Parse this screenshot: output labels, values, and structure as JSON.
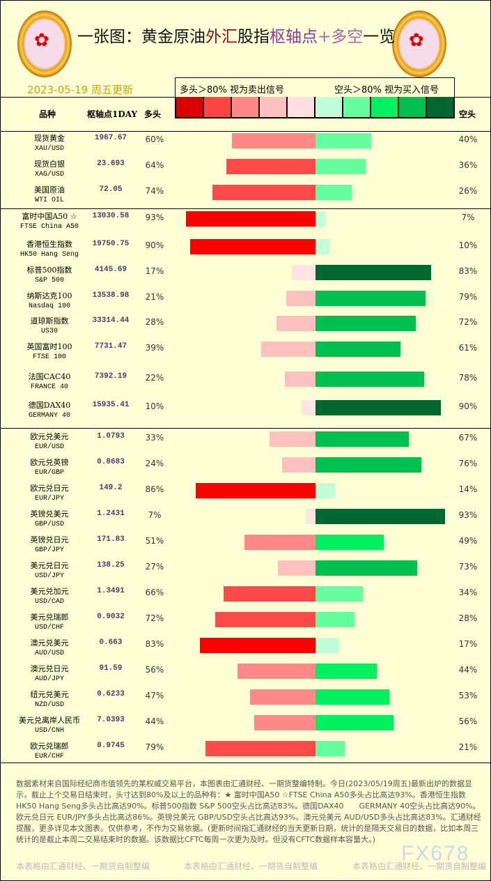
{
  "header": {
    "title_parts": [
      "一张图：黄金原油",
      "外汇",
      "股指",
      "枢轴点",
      "+多空",
      "一览"
    ],
    "date": "2023-05-19 周五更新",
    "legend_long": "多头＞80% 视为卖出信号",
    "legend_short": "空头＞80% 视为买入信号",
    "col_name": "品种",
    "col_pivot": "枢轴点1DAY",
    "col_long": "多头",
    "col_short": "空头"
  },
  "colors": {
    "swatches": [
      "#dd0000",
      "#ff4444",
      "#ff8888",
      "#ffc0c0",
      "#ffe0e0",
      "#c0ffd8",
      "#66ffa0",
      "#00f060",
      "#00c050",
      "#006830"
    ],
    "long": {
      "lt20": "#ffe4e4",
      "lt40": "#ffc0c0",
      "lt60": "#ff8888",
      "lt80": "#ff4a4a",
      "ge80": "#ff0000"
    },
    "short": {
      "lt20": "#c0ffd8",
      "lt40": "#66ffa0",
      "lt60": "#00f060",
      "lt80": "#00c050",
      "ge80": "#006830"
    }
  },
  "groups": [
    [
      {
        "cn": "现货黄金",
        "en": "XAU/USD",
        "pivot": "1967.67",
        "long": 60,
        "short": 40
      },
      {
        "cn": "现货白银",
        "en": "XAG/USD",
        "pivot": "23.693",
        "long": 64,
        "short": 36
      },
      {
        "cn": "美国原油",
        "en": "WTI OIL",
        "pivot": "72.05",
        "long": 74,
        "short": 26
      }
    ],
    [
      {
        "cn": "富时中国A50 ☆",
        "en": "FTSE China A50",
        "pivot": "13030.58",
        "long": 93,
        "short": 7
      },
      {
        "cn": "香港恒生指数",
        "en": "HK50 Hang Seng",
        "pivot": "19750.75",
        "long": 90,
        "short": 10
      },
      {
        "cn": "标普500指数",
        "en": "S&P 500",
        "pivot": "4145.69",
        "long": 17,
        "short": 83
      },
      {
        "cn": "纳斯达克100",
        "en": "Nasdaq 100",
        "pivot": "13538.98",
        "long": 21,
        "short": 79
      },
      {
        "cn": "道琼斯指数",
        "en": "US30",
        "pivot": "33314.44",
        "long": 28,
        "short": 72
      },
      {
        "cn": "英国富时100",
        "en": "FTSE 100",
        "pivot": "7731.47",
        "long": 39,
        "short": 61
      },
      {
        "cn": "法国CAC40",
        "en": "FRANCE 40",
        "pivot": "7392.19",
        "long": 22,
        "short": 78
      },
      {
        "cn": "德国DAX40",
        "en": "GERMANY 40",
        "pivot": "15935.41",
        "long": 10,
        "short": 90
      }
    ],
    [
      {
        "cn": "欧元兑美元",
        "en": "EUR/USD",
        "pivot": "1.0793",
        "long": 33,
        "short": 67
      },
      {
        "cn": "欧元兑英镑",
        "en": "EUR/GBP",
        "pivot": "0.8683",
        "long": 24,
        "short": 76
      },
      {
        "cn": "欧元兑日元",
        "en": "EUR/JPY",
        "pivot": "149.2",
        "long": 86,
        "short": 14
      },
      {
        "cn": "英镑兑美元",
        "en": "GBP/USD",
        "pivot": "1.2431",
        "long": 7,
        "short": 93
      },
      {
        "cn": "英镑兑日元",
        "en": "GBP/JPY",
        "pivot": "171.83",
        "long": 51,
        "short": 49
      },
      {
        "cn": "美元兑日元",
        "en": "USD/JPY",
        "pivot": "138.25",
        "long": 27,
        "short": 73
      },
      {
        "cn": "美元兑加元",
        "en": "USD/CAD",
        "pivot": "1.3491",
        "long": 66,
        "short": 34
      },
      {
        "cn": "美元兑瑞郎",
        "en": "USD/CHF",
        "pivot": "0.9032",
        "long": 72,
        "short": 28
      },
      {
        "cn": "澳元兑美元",
        "en": "AUD/USD",
        "pivot": "0.663",
        "long": 83,
        "short": 17
      },
      {
        "cn": "澳元兑日元",
        "en": "AUD/JPY",
        "pivot": "91.59",
        "long": 56,
        "short": 44
      },
      {
        "cn": "纽元兑美元",
        "en": "NZD/USD",
        "pivot": "0.6233",
        "long": 47,
        "short": 53
      },
      {
        "cn": "美元兑离岸人民币",
        "en": "USD/CNH",
        "pivot": "7.0393",
        "long": 44,
        "short": 56
      },
      {
        "cn": "欧元兑瑞郎",
        "en": "EUR/CHF",
        "pivot": "0.9745",
        "long": 79,
        "short": 21
      }
    ]
  ],
  "footer": {
    "note": "数据素材来自国际经纪商市值领先的某权威交易平台，本图表由汇通财经、一期货整编特制。今日(2023/05/19周五)最新出炉的数据显示，截止上个交易日结束时，头寸达到80%及以上的品种有：★ 富时中国A50 ☆FTSE China A50多头占比高达93%。香港恒生指数 HK50 Hang Seng多头占比高达90%。标普500指数 S&P 500空头占比高达83%。德国DAX40　　GERMANY 40空头占比高达90%。欧元兑日元 EUR/JPY多头占比高达86%。英镑兑美元 GBP/USD空头占比高达93%。澳元兑美元 AUD/USD多头占比高达83%。汇通财经提醒，更多详见本文图表。仅供参考，不作为交易依据。(更新时间指汇通财经的当天更新日期，统计的是隔天交易日的数据，比如本周三统计的是截止本周二交易结束时的数据。该数据比CFTC每周一次更为及时。但没有CFTC数据样本容量大。)",
    "watermark": "本表格由汇通财经、一期货自制整编",
    "brand": "FX678"
  }
}
